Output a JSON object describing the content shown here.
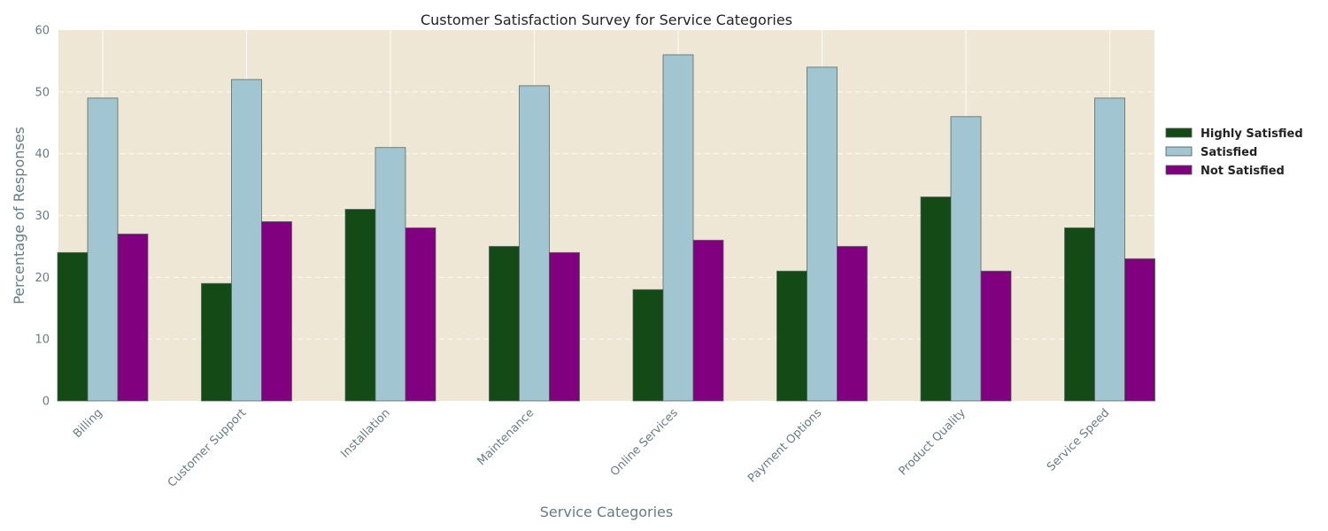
{
  "chart_data": {
    "type": "bar",
    "title": "Customer Satisfaction Survey for Service Categories",
    "xlabel": "Service Categories",
    "ylabel": "Percentage of Responses",
    "ylim": [
      0,
      60
    ],
    "yticks": [
      0,
      10,
      20,
      30,
      40,
      50,
      60
    ],
    "grid": true,
    "legend_position": "right",
    "background_color": "#efe7d5",
    "categories": [
      "Billing",
      "Customer Support",
      "Installation",
      "Maintenance",
      "Online Services",
      "Payment Options",
      "Product Quality",
      "Service Speed"
    ],
    "series": [
      {
        "name": "Highly Satisfied",
        "color": "#144a15",
        "values": [
          24,
          19,
          31,
          25,
          18,
          21,
          33,
          28
        ]
      },
      {
        "name": "Satisfied",
        "color": "#a1c5d1",
        "values": [
          49,
          52,
          41,
          51,
          56,
          54,
          46,
          49
        ]
      },
      {
        "name": "Not Satisfied",
        "color": "#800080",
        "values": [
          27,
          29,
          28,
          24,
          26,
          25,
          21,
          23
        ]
      }
    ]
  }
}
